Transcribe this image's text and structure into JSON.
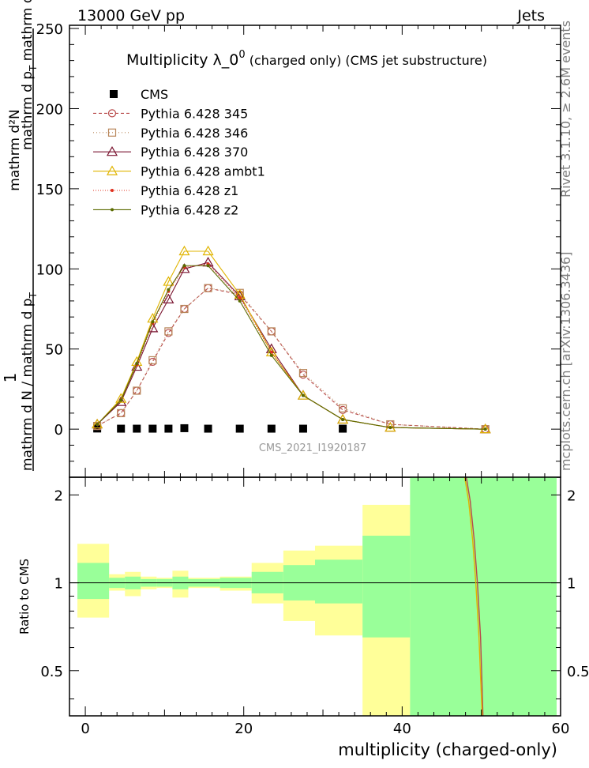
{
  "header": {
    "left": "13000 GeV pp",
    "right": "Jets"
  },
  "side_labels": {
    "rivet": "Rivet 3.1.10, ≥ 2.6M events",
    "mcplots": "mcplots.cern.ch [arXiv:1306.3436]"
  },
  "watermark": "CMS_2021_I1920187",
  "chart_data": [
    {
      "type": "line",
      "title": "Multiplicity  λ_0^0 (charged only) (CMS jet substructure)",
      "title_main": "Multiplicity  λ_0",
      "title_sup": "0",
      "title_tail": " (charged only) (CMS jet substructure)",
      "ylabel_num_prefix": "1",
      "ylabel_num": "mathrm d²N",
      "ylabel_den": "mathrm d N / mathrm d p",
      "ylabel_den_sub": "T",
      "ylabel_den2": "mathrm d p",
      "ylabel_den2_sub": "T",
      "ylabel_den3": " mathrm d lambda",
      "xlim": [
        -2,
        60
      ],
      "ylim": [
        -30,
        252
      ],
      "yticks": [
        0,
        50,
        100,
        150,
        200,
        250
      ],
      "series": [
        {
          "name": "CMS",
          "style": "data",
          "color": "#000000",
          "x": [
            1.5,
            4.5,
            6.5,
            8.5,
            10.5,
            12.5,
            15.5,
            19.5,
            23.5,
            27.5,
            32.5
          ],
          "y": [
            0.4,
            0.3,
            0.3,
            0.3,
            0.3,
            0.6,
            0.3,
            0.3,
            0.3,
            0.3,
            0.3
          ]
        },
        {
          "name": "Pythia 6.428 345",
          "style": "circle",
          "color": "#b84a4a",
          "dash": "4,3",
          "x": [
            1.5,
            4.5,
            6.5,
            8.5,
            10.5,
            12.5,
            15.5,
            19.5,
            23.5,
            27.5,
            32.5,
            38.5,
            50.5
          ],
          "y": [
            2,
            10,
            24,
            42,
            60,
            75,
            88,
            84,
            61,
            34,
            12,
            3,
            0
          ]
        },
        {
          "name": "Pythia 6.428 346",
          "style": "square",
          "color": "#b8865a",
          "dash": "1,3",
          "x": [
            1.5,
            4.5,
            6.5,
            8.5,
            10.5,
            12.5,
            15.5,
            19.5,
            23.5,
            27.5,
            32.5,
            38.5,
            50.5
          ],
          "y": [
            2,
            10,
            24,
            43,
            61,
            75,
            88,
            85,
            61,
            35,
            13,
            3,
            0
          ]
        },
        {
          "name": "Pythia 6.428 370",
          "style": "triangle",
          "color": "#7a1530",
          "dash": "",
          "x": [
            1.5,
            4.5,
            6.5,
            8.5,
            10.5,
            12.5,
            15.5,
            19.5,
            23.5,
            27.5,
            32.5,
            38.5,
            50.5
          ],
          "y": [
            3,
            17,
            39,
            63,
            81,
            100,
            104,
            83,
            50,
            21,
            6,
            1,
            0
          ]
        },
        {
          "name": "Pythia 6.428 ambt1",
          "style": "triangle",
          "color": "#e0b400",
          "dash": "",
          "x": [
            1.5,
            4.5,
            6.5,
            8.5,
            10.5,
            12.5,
            15.5,
            19.5,
            23.5,
            27.5,
            32.5,
            38.5,
            50.5
          ],
          "y": [
            3,
            19,
            42,
            69,
            92,
            111,
            111,
            84,
            48,
            21,
            6,
            1,
            0
          ]
        },
        {
          "name": "Pythia 6.428 z1",
          "style": "dot",
          "color": "#e0301e",
          "dash": "1,2",
          "x": [
            1.5,
            4.5,
            6.5,
            8.5,
            10.5,
            12.5,
            15.5,
            19.5,
            23.5,
            27.5,
            32.5,
            38.5,
            50.5
          ],
          "y": [
            3,
            18,
            40,
            66,
            86,
            101,
            103,
            82,
            48,
            21,
            6,
            1,
            0
          ]
        },
        {
          "name": "Pythia 6.428 z2",
          "style": "dot",
          "color": "#5a6b00",
          "dash": "",
          "x": [
            1.5,
            4.5,
            6.5,
            8.5,
            10.5,
            12.5,
            15.5,
            19.5,
            23.5,
            27.5,
            32.5,
            38.5,
            50.5
          ],
          "y": [
            3,
            18,
            41,
            67,
            87,
            102,
            102,
            80,
            46,
            21,
            6,
            1,
            0
          ]
        }
      ]
    },
    {
      "type": "line",
      "ylabel": "Ratio to CMS",
      "xlabel": "multiplicity (charged-only)",
      "xlim": [
        -2,
        60
      ],
      "ylim": [
        0.35,
        2.3
      ],
      "xticks": [
        0,
        20,
        40,
        60
      ],
      "yticks": [
        0.5,
        1,
        2
      ],
      "reference": 1,
      "bins": [
        {
          "x0": -1,
          "x1": 3,
          "stat": [
            0.88,
            1.17
          ],
          "tot": [
            0.76,
            1.36
          ]
        },
        {
          "x0": 3,
          "x1": 5,
          "stat": [
            0.96,
            1.04
          ],
          "tot": [
            0.94,
            1.07
          ]
        },
        {
          "x0": 5,
          "x1": 7,
          "stat": [
            0.95,
            1.05
          ],
          "tot": [
            0.9,
            1.09
          ]
        },
        {
          "x0": 7,
          "x1": 9,
          "stat": [
            0.97,
            1.03
          ],
          "tot": [
            0.95,
            1.05
          ]
        },
        {
          "x0": 9,
          "x1": 11,
          "stat": [
            0.97,
            1.03
          ],
          "tot": [
            0.96,
            1.04
          ]
        },
        {
          "x0": 11,
          "x1": 13,
          "stat": [
            0.95,
            1.05
          ],
          "tot": [
            0.89,
            1.1
          ]
        },
        {
          "x0": 13,
          "x1": 17,
          "stat": [
            0.97,
            1.03
          ],
          "tot": [
            0.96,
            1.04
          ]
        },
        {
          "x0": 17,
          "x1": 21,
          "stat": [
            0.96,
            1.04
          ],
          "tot": [
            0.94,
            1.05
          ]
        },
        {
          "x0": 21,
          "x1": 25,
          "stat": [
            0.92,
            1.09
          ],
          "tot": [
            0.85,
            1.17
          ]
        },
        {
          "x0": 25,
          "x1": 29,
          "stat": [
            0.87,
            1.15
          ],
          "tot": [
            0.74,
            1.29
          ]
        },
        {
          "x0": 29,
          "x1": 35,
          "stat": [
            0.85,
            1.2
          ],
          "tot": [
            0.66,
            1.34
          ]
        },
        {
          "x0": 35,
          "x1": 41,
          "stat": [
            0.65,
            1.45
          ],
          "tot": [
            0.35,
            1.85
          ]
        },
        {
          "x0": 41,
          "x1": 59.5,
          "stat": [
            0.35,
            2.3
          ],
          "tot": [
            0.35,
            2.3
          ]
        }
      ],
      "ratio_curve": {
        "color": "#e0b400",
        "x": [
          47.9,
          48.4,
          48.9,
          49.3,
          49.7,
          50.1
        ],
        "y": [
          2.3,
          1.9,
          1.4,
          1.0,
          0.65,
          0.35
        ]
      },
      "ratio_curve2": {
        "color": "#b84a4a",
        "x": [
          48.1,
          48.6,
          49.1,
          49.5,
          49.9,
          50.2
        ],
        "y": [
          2.3,
          1.9,
          1.4,
          1.0,
          0.65,
          0.35
        ]
      }
    }
  ],
  "colors": {
    "stat_band": "#99ff99",
    "tot_band": "#ffff99"
  }
}
